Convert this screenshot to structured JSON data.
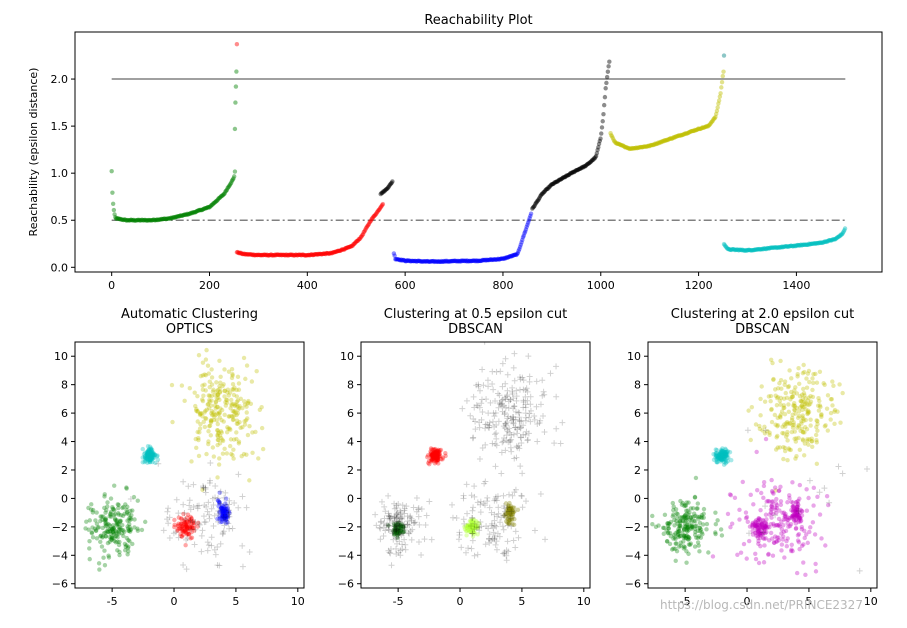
{
  "watermark": "https://blog.csdn.net/PRINCE2327",
  "chart_data": [
    {
      "id": "reach",
      "type": "scatter",
      "title": "Reachability Plot",
      "xlabel": "",
      "ylabel": "Reachability (epsilon distance)",
      "xlim": [
        -75,
        1575
      ],
      "ylim": [
        -0.05,
        2.5
      ],
      "xticks": [
        0,
        200,
        400,
        600,
        800,
        1000,
        1200,
        1400
      ],
      "yticks": [
        0.0,
        0.5,
        1.0,
        1.5,
        2.0
      ],
      "ytick_labels": [
        "0.0",
        "0.5",
        "1.0",
        "1.5",
        "2.0"
      ],
      "hlines": [
        {
          "y": 2.0,
          "style": "solid",
          "color": "#808080",
          "xmin": 0,
          "xmax": 1500
        },
        {
          "y": 0.5,
          "style": "dashdot",
          "color": "#808080",
          "xmin": 0,
          "xmax": 1500
        }
      ],
      "segments": [
        {
          "name": "green-cluster",
          "color": "#008000",
          "curve": [
            [
              0,
              1.02
            ],
            [
              2,
              0.72
            ],
            [
              5,
              0.58
            ],
            [
              8,
              0.52
            ],
            [
              30,
              0.5
            ],
            [
              80,
              0.5
            ],
            [
              120,
              0.52
            ],
            [
              160,
              0.57
            ],
            [
              200,
              0.64
            ],
            [
              230,
              0.78
            ],
            [
              250,
              0.95
            ],
            [
              252,
              1.02
            ]
          ]
        },
        {
          "name": "green-outliers",
          "color": "#008000",
          "points": [
            [
              252,
              1.47
            ],
            [
              253,
              1.75
            ],
            [
              254,
              1.92
            ],
            [
              255,
              2.08
            ]
          ]
        },
        {
          "name": "noise-spike",
          "color": "#ff0000",
          "points": [
            [
              256,
              2.37
            ]
          ]
        },
        {
          "name": "red-cluster",
          "color": "#ff0000",
          "curve": [
            [
              256,
              0.16
            ],
            [
              270,
              0.14
            ],
            [
              300,
              0.13
            ],
            [
              400,
              0.13
            ],
            [
              450,
              0.15
            ],
            [
              490,
              0.22
            ],
            [
              510,
              0.32
            ],
            [
              530,
              0.5
            ],
            [
              545,
              0.6
            ],
            [
              555,
              0.68
            ]
          ]
        },
        {
          "name": "red-black-tail",
          "color": "#000000",
          "curve": [
            [
              550,
              0.78
            ],
            [
              560,
              0.82
            ],
            [
              570,
              0.88
            ],
            [
              575,
              0.92
            ]
          ]
        },
        {
          "name": "blue-cluster",
          "color": "#0000ff",
          "curve": [
            [
              577,
              0.15
            ],
            [
              580,
              0.09
            ],
            [
              600,
              0.07
            ],
            [
              650,
              0.06
            ],
            [
              750,
              0.07
            ],
            [
              800,
              0.09
            ],
            [
              830,
              0.14
            ],
            [
              840,
              0.3
            ],
            [
              850,
              0.45
            ],
            [
              858,
              0.58
            ]
          ]
        },
        {
          "name": "black-cluster",
          "color": "#000000",
          "curve": [
            [
              860,
              0.62
            ],
            [
              880,
              0.78
            ],
            [
              900,
              0.88
            ],
            [
              930,
              0.97
            ],
            [
              950,
              1.03
            ],
            [
              970,
              1.08
            ],
            [
              990,
              1.17
            ],
            [
              1000,
              1.38
            ],
            [
              1005,
              1.6
            ],
            [
              1010,
              1.9
            ],
            [
              1015,
              2.1
            ],
            [
              1018,
              2.2
            ]
          ]
        },
        {
          "name": "yellow-cluster",
          "color": "#bfbf00",
          "curve": [
            [
              1020,
              1.42
            ],
            [
              1030,
              1.32
            ],
            [
              1060,
              1.26
            ],
            [
              1100,
              1.29
            ],
            [
              1150,
              1.38
            ],
            [
              1200,
              1.47
            ],
            [
              1220,
              1.5
            ],
            [
              1235,
              1.6
            ],
            [
              1245,
              1.85
            ],
            [
              1250,
              2.05
            ],
            [
              1252,
              2.1
            ]
          ]
        },
        {
          "name": "yellow-outlier",
          "color": "#008080",
          "points": [
            [
              1252,
              2.25
            ]
          ]
        },
        {
          "name": "cyan-cluster",
          "color": "#00bfbf",
          "curve": [
            [
              1252,
              0.25
            ],
            [
              1260,
              0.19
            ],
            [
              1300,
              0.18
            ],
            [
              1400,
              0.23
            ],
            [
              1450,
              0.26
            ],
            [
              1480,
              0.3
            ],
            [
              1495,
              0.36
            ],
            [
              1500,
              0.42
            ]
          ]
        }
      ]
    },
    {
      "id": "opt",
      "type": "scatter",
      "title_lines": [
        "Automatic Clustering",
        "OPTICS"
      ],
      "xlim": [
        -8,
        10.5
      ],
      "ylim": [
        -6.3,
        11
      ],
      "xticks": [
        -5,
        0,
        5,
        10
      ],
      "yticks": [
        -6,
        -4,
        -2,
        0,
        2,
        4,
        6,
        8,
        10
      ],
      "clusters": [
        {
          "color": "#008000",
          "cx": -5,
          "cy": -2,
          "sx": 1.0,
          "sy": 0.9,
          "n": 200,
          "marker": "dot"
        },
        {
          "color": "#00bfbf",
          "cx": -2,
          "cy": 3,
          "sx": 0.25,
          "sy": 0.25,
          "n": 120,
          "marker": "dot"
        },
        {
          "color": "#bfbf00",
          "cx": 4,
          "cy": 6,
          "sx": 1.5,
          "sy": 1.6,
          "n": 260,
          "marker": "dot"
        },
        {
          "color": "#ff0000",
          "cx": 1,
          "cy": -2,
          "sx": 0.4,
          "sy": 0.4,
          "n": 90,
          "marker": "dot"
        },
        {
          "color": "#0000ff",
          "cx": 4,
          "cy": -1,
          "sx": 0.2,
          "sy": 0.4,
          "n": 80,
          "marker": "dot"
        },
        {
          "color": "#000000",
          "cx": 2.5,
          "cy": -1.5,
          "sx": 1.8,
          "sy": 1.6,
          "n": 110,
          "marker": "plus"
        }
      ]
    },
    {
      "id": "d05",
      "type": "scatter",
      "title_lines": [
        "Clustering at 0.5 epsilon cut",
        "DBSCAN"
      ],
      "xlim": [
        -8,
        10.5
      ],
      "ylim": [
        -6.3,
        11
      ],
      "xticks": [
        -5,
        0,
        5,
        10
      ],
      "yticks": [
        -6,
        -4,
        -2,
        0,
        2,
        4,
        6,
        8,
        10
      ],
      "clusters": [
        {
          "color": "#ff0000",
          "cx": -2,
          "cy": 3,
          "sx": 0.25,
          "sy": 0.25,
          "n": 120,
          "marker": "dot"
        },
        {
          "color": "#adff2f",
          "cx": 1,
          "cy": -2,
          "sx": 0.25,
          "sy": 0.25,
          "n": 70,
          "marker": "dot"
        },
        {
          "color": "#808000",
          "cx": 4,
          "cy": -1,
          "sx": 0.2,
          "sy": 0.35,
          "n": 60,
          "marker": "dot"
        },
        {
          "color": "#006400",
          "cx": -5,
          "cy": -2.2,
          "sx": 0.25,
          "sy": 0.25,
          "n": 50,
          "marker": "dot"
        },
        {
          "color": "#000000",
          "cx": -5,
          "cy": -2,
          "sx": 1.0,
          "sy": 0.9,
          "n": 140,
          "marker": "plus"
        },
        {
          "color": "#000000",
          "cx": 4,
          "cy": 6,
          "sx": 1.5,
          "sy": 1.6,
          "n": 220,
          "marker": "plus"
        },
        {
          "color": "#000000",
          "cx": 2.5,
          "cy": -1.5,
          "sx": 1.7,
          "sy": 1.5,
          "n": 120,
          "marker": "plus"
        }
      ]
    },
    {
      "id": "d20",
      "type": "scatter",
      "title_lines": [
        "Clustering at 2.0 epsilon cut",
        "DBSCAN"
      ],
      "xlim": [
        -8,
        10.5
      ],
      "ylim": [
        -6.3,
        11
      ],
      "xticks": [
        -5,
        0,
        5,
        10
      ],
      "yticks": [
        -6,
        -4,
        -2,
        0,
        2,
        4,
        6,
        8,
        10
      ],
      "clusters": [
        {
          "color": "#008000",
          "cx": -5,
          "cy": -2,
          "sx": 1.0,
          "sy": 0.9,
          "n": 200,
          "marker": "dot"
        },
        {
          "color": "#00bfbf",
          "cx": -2,
          "cy": 3,
          "sx": 0.25,
          "sy": 0.25,
          "n": 120,
          "marker": "dot"
        },
        {
          "color": "#bfbf00",
          "cx": 4,
          "cy": 6,
          "sx": 1.5,
          "sy": 1.6,
          "n": 250,
          "marker": "dot"
        },
        {
          "color": "#bf00bf",
          "cx": 2.5,
          "cy": -1.5,
          "sx": 1.7,
          "sy": 1.5,
          "n": 200,
          "marker": "dot"
        },
        {
          "color": "#bf00bf",
          "cx": 1,
          "cy": -2,
          "sx": 0.35,
          "sy": 0.35,
          "n": 70,
          "marker": "dot"
        },
        {
          "color": "#bf00bf",
          "cx": 4,
          "cy": -1,
          "sx": 0.2,
          "sy": 0.35,
          "n": 60,
          "marker": "dot"
        },
        {
          "color": "#000000",
          "cx": 4,
          "cy": 0.5,
          "sx": 2.5,
          "sy": 2.5,
          "n": 15,
          "marker": "plus"
        }
      ]
    }
  ]
}
